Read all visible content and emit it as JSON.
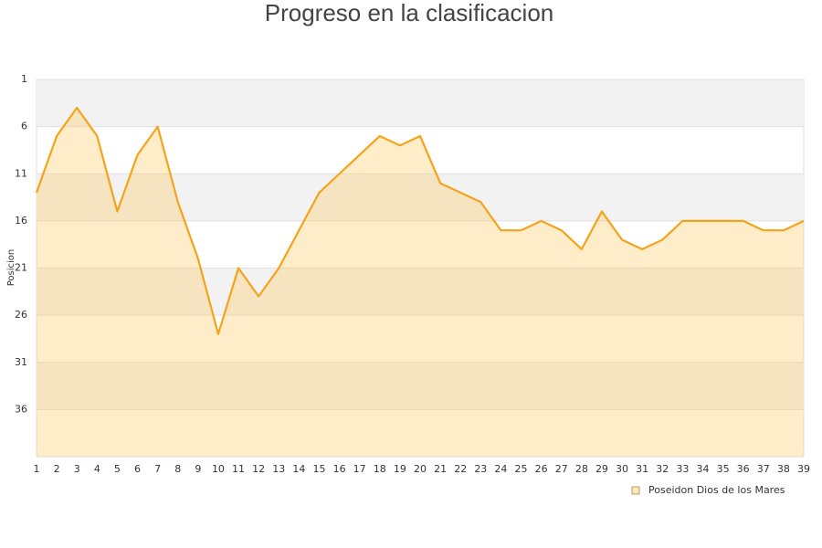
{
  "chart_data": {
    "type": "area",
    "title": "Progreso en la clasificacion",
    "y_label": "Posicion",
    "x": [
      1,
      2,
      3,
      4,
      5,
      6,
      7,
      8,
      9,
      10,
      11,
      12,
      13,
      14,
      15,
      16,
      17,
      18,
      19,
      20,
      21,
      22,
      23,
      24,
      25,
      26,
      27,
      28,
      29,
      30,
      31,
      32,
      33,
      34,
      35,
      36,
      37,
      38,
      39
    ],
    "xlim": [
      1,
      39
    ],
    "series": [
      {
        "name": "Poseidon Dios de los Mares",
        "color": "#f5a31a",
        "values": [
          13,
          7,
          4,
          7,
          15,
          9,
          6,
          14,
          20,
          28,
          21,
          24,
          21,
          17,
          13,
          11,
          9,
          7,
          8,
          7,
          12,
          13,
          14,
          17,
          17,
          16,
          17,
          19,
          15,
          18,
          19,
          18,
          16,
          16,
          16,
          16,
          17,
          17,
          16
        ]
      }
    ],
    "ylim": [
      1,
      41
    ],
    "yticks": [
      1,
      6,
      11,
      16,
      21,
      26,
      31,
      36
    ],
    "inverted_y": true,
    "banded_grid": true,
    "legend": "bottom-right"
  }
}
